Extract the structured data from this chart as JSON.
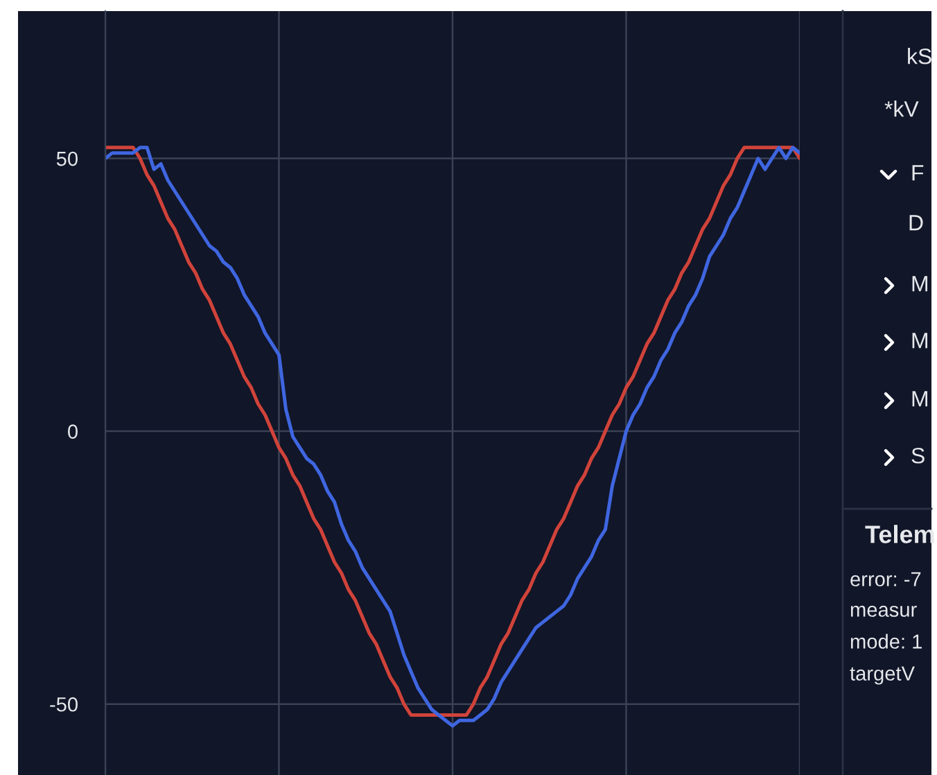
{
  "chart_data": {
    "type": "line",
    "categories": [
      null,
      null,
      null,
      null,
      null,
      null,
      null,
      null,
      null,
      null,
      null,
      null,
      null,
      null,
      null,
      null,
      null,
      null,
      null,
      null,
      null,
      null,
      null,
      null,
      null,
      null,
      null,
      null,
      null,
      null,
      null,
      null,
      null,
      null,
      null,
      null,
      null,
      null,
      null,
      null,
      null,
      null,
      null,
      null,
      null,
      null,
      null,
      null,
      null,
      null,
      null,
      null,
      null,
      null,
      null,
      null,
      null,
      null,
      null,
      null,
      null,
      null,
      null,
      null,
      null,
      null,
      null,
      null,
      null,
      null,
      null,
      null,
      null,
      null,
      null,
      null,
      null,
      null,
      null,
      null,
      null,
      null,
      null,
      null,
      null,
      null,
      null,
      null,
      null,
      null,
      null,
      null,
      null,
      null,
      null,
      null,
      null,
      null,
      null,
      null,
      null
    ],
    "series": [
      {
        "color": "#d0433a",
        "values": [
          52,
          52,
          52,
          52,
          52,
          50,
          47,
          45,
          42,
          39,
          37,
          34,
          31,
          29,
          26,
          24,
          21,
          18,
          16,
          13,
          10,
          8,
          5,
          3,
          0,
          -3,
          -5,
          -8,
          -10,
          -13,
          -16,
          -18,
          -21,
          -24,
          -26,
          -29,
          -31,
          -34,
          -37,
          -39,
          -42,
          -45,
          -47,
          -50,
          -52,
          -52,
          -52,
          -52,
          -52,
          -52,
          -52,
          -52,
          -52,
          -50,
          -47,
          -45,
          -42,
          -39,
          -37,
          -34,
          -31,
          -29,
          -26,
          -24,
          -21,
          -18,
          -16,
          -13,
          -10,
          -8,
          -5,
          -3,
          0,
          3,
          5,
          8,
          10,
          13,
          16,
          18,
          21,
          24,
          26,
          29,
          31,
          34,
          37,
          39,
          42,
          45,
          47,
          50,
          52,
          52,
          52,
          52,
          52,
          52,
          52,
          52,
          50
        ]
      },
      {
        "color": "#3f66e0",
        "values": [
          50,
          51,
          51,
          51,
          51,
          52,
          52,
          48,
          49,
          46,
          44,
          42,
          40,
          38,
          36,
          34,
          33,
          31,
          30,
          28,
          25,
          23,
          21,
          18,
          16,
          14,
          4,
          -1,
          -3,
          -5,
          -6,
          -8,
          -11,
          -13,
          -17,
          -20,
          -22,
          -25,
          -27,
          -29,
          -31,
          -33,
          -37,
          -41,
          -44,
          -47,
          -49,
          -51,
          -52,
          -53,
          -54,
          -53,
          -53,
          -53,
          -52,
          -51,
          -49,
          -46,
          -44,
          -42,
          -40,
          -38,
          -36,
          -35,
          -34,
          -33,
          -32,
          -30,
          -27,
          -25,
          -23,
          -20,
          -18,
          -10,
          -5,
          0,
          3,
          5,
          8,
          10,
          13,
          15,
          18,
          20,
          23,
          25,
          28,
          32,
          34,
          36,
          39,
          41,
          44,
          47,
          50,
          48,
          50,
          52,
          50,
          52,
          51
        ]
      }
    ],
    "ylim": [
      -63,
      77
    ],
    "yticks": [
      -50,
      0,
      50
    ],
    "grid": true,
    "tick_labels": "y",
    "annotations": [
      "kS",
      "*kV",
      "F",
      "D",
      "M",
      "M",
      "M",
      "S",
      "Telem",
      "error: -7",
      "measur",
      "mode: 1",
      "targetV"
    ]
  }
}
